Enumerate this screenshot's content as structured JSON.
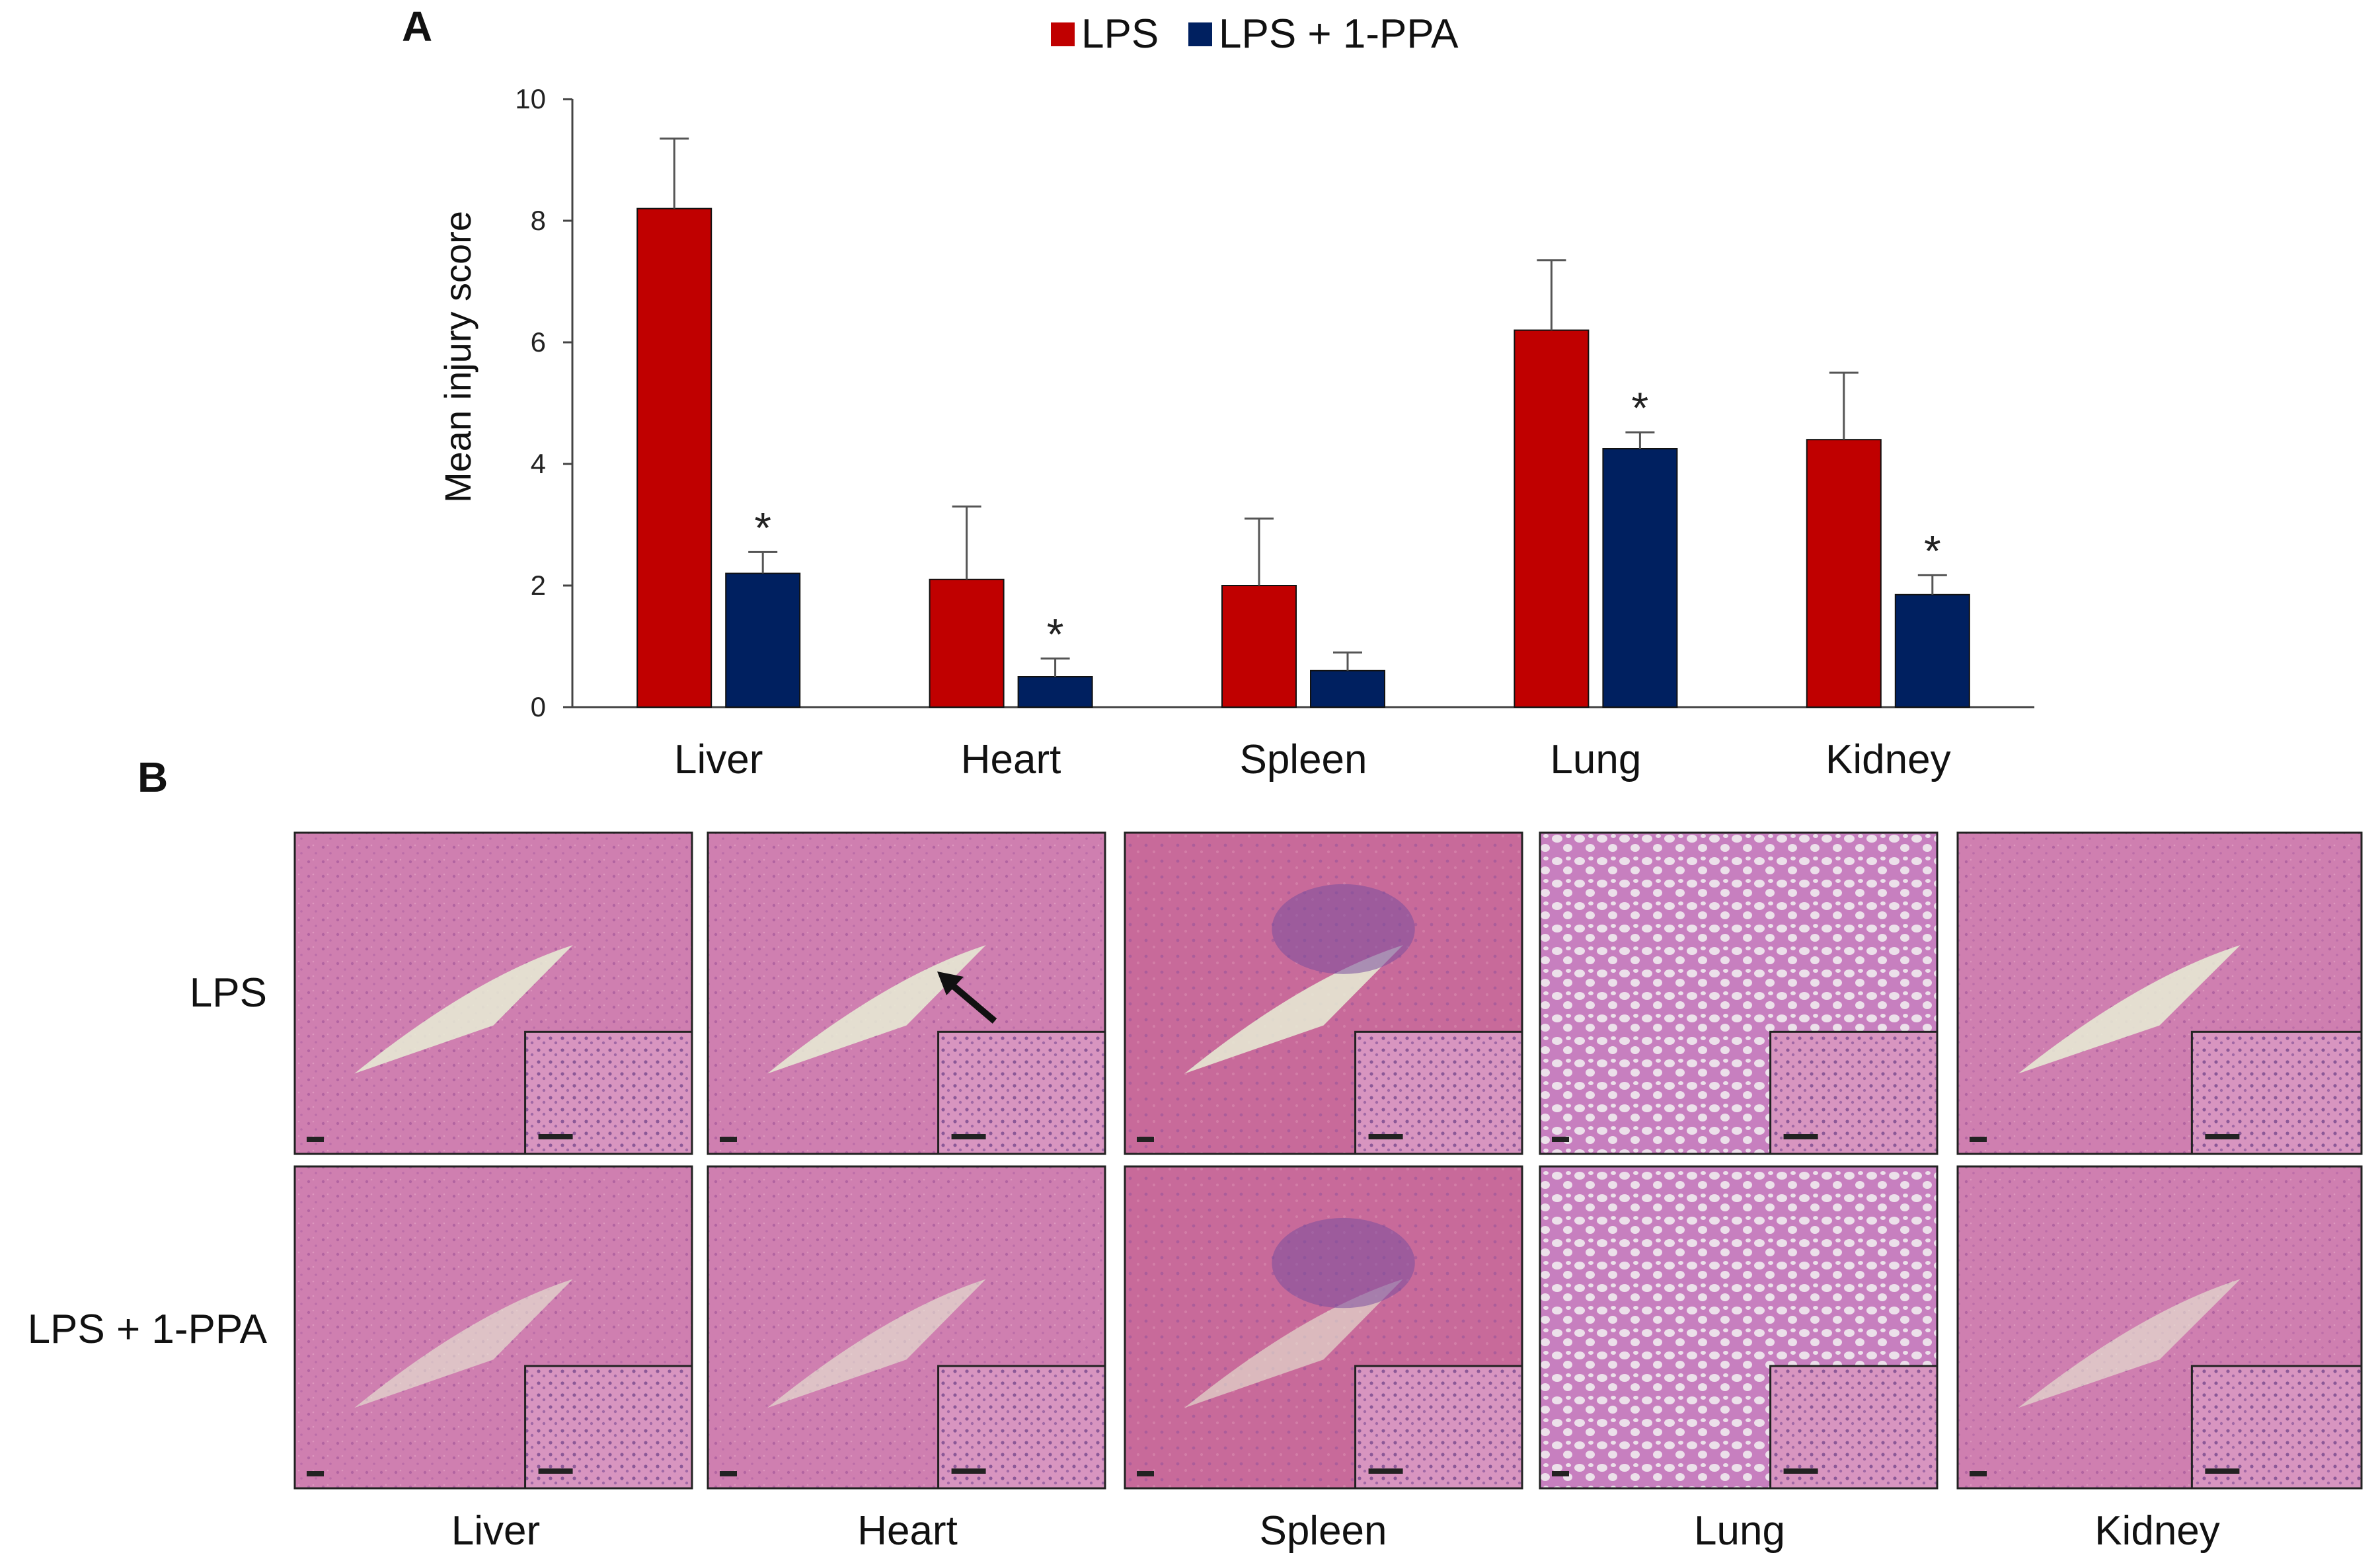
{
  "panel_labels": {
    "a": "A",
    "b": "B"
  },
  "chart_data": {
    "type": "bar",
    "categories": [
      "Liver",
      "Heart",
      "Spleen",
      "Lung",
      "Kidney"
    ],
    "series": [
      {
        "name": "LPS",
        "color": "#C00000",
        "values": [
          8.2,
          2.1,
          2.0,
          6.2,
          4.4
        ],
        "errors": [
          1.15,
          1.2,
          1.1,
          1.15,
          1.1
        ]
      },
      {
        "name": "LPS + 1-PPA",
        "color": "#002060",
        "values": [
          2.2,
          0.5,
          0.6,
          4.25,
          1.85
        ],
        "errors": [
          0.35,
          0.3,
          0.3,
          0.27,
          0.32
        ]
      }
    ],
    "significance": [
      "*",
      "*",
      "",
      "*",
      "*"
    ],
    "xlabel": "",
    "ylabel": "Mean injury score",
    "ylim": [
      0,
      10
    ],
    "yticks": [
      0,
      2,
      4,
      6,
      8,
      10
    ],
    "legend_position": "top",
    "grid": false
  },
  "micrographs": {
    "rows": [
      "LPS",
      "LPS + 1-PPA"
    ],
    "columns": [
      "Liver",
      "Heart",
      "Spleen",
      "Lung",
      "Kidney"
    ]
  }
}
